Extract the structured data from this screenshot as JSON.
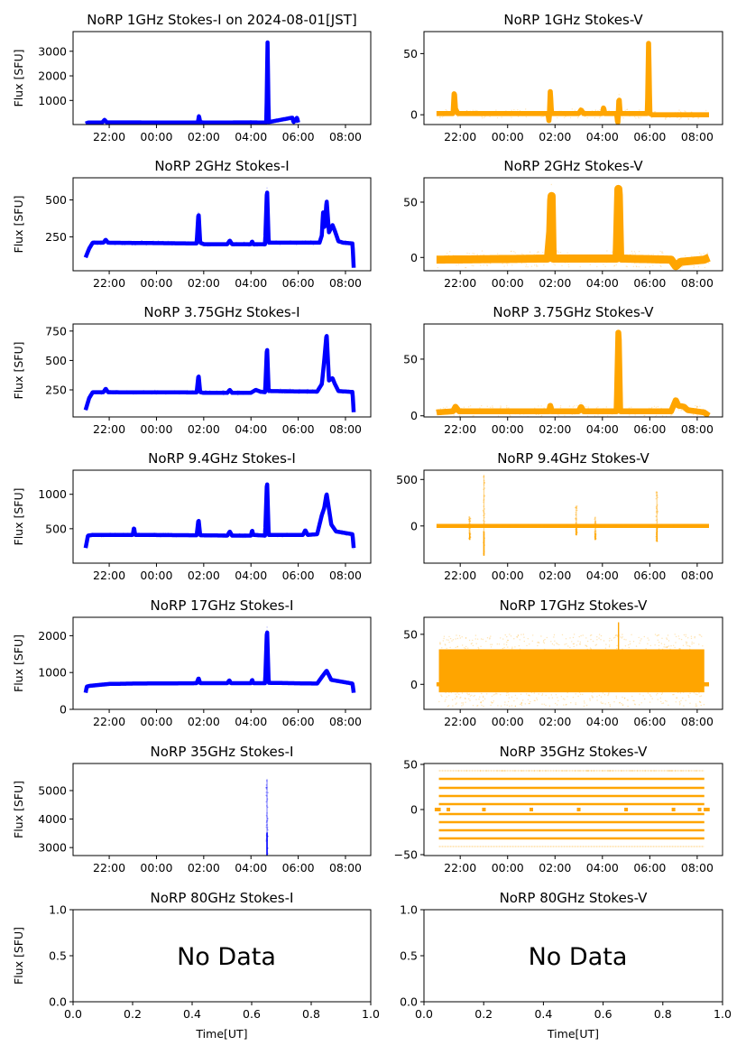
{
  "chart_data": [
    {
      "type": "scatter",
      "title": "NoRP 1GHz Stokes-I on 2024-08-01[JST]",
      "ylabel": "Flux [SFU]",
      "xlabel": "",
      "color": "#0000ff",
      "ylim": [
        20,
        3800
      ],
      "yticks": [
        1000,
        2000,
        3000
      ],
      "xticks": [
        "22:00",
        "00:00",
        "02:00",
        "04:00",
        "06:00",
        "08:00"
      ],
      "baseline": 100,
      "data_range_hours": [
        21.0,
        30.0
      ],
      "x": [
        21.0,
        21.1,
        21.7,
        21.8,
        21.9,
        25.75,
        25.8,
        25.85,
        26.0,
        28.0,
        28.65,
        28.7,
        28.75,
        29.75,
        29.8,
        29.95,
        30.0
      ],
      "values": [
        60,
        100,
        100,
        210,
        110,
        100,
        380,
        120,
        100,
        110,
        100,
        3400,
        120,
        300,
        110,
        300,
        100
      ],
      "noise": 15
    },
    {
      "type": "scatter",
      "title": "NoRP 1GHz Stokes-V",
      "ylabel": "",
      "xlabel": "",
      "color": "#ffa500",
      "ylim": [
        -8,
        68
      ],
      "yticks": [
        0,
        50
      ],
      "xticks": [
        "22:00",
        "00:00",
        "02:00",
        "04:00",
        "06:00",
        "08:00"
      ],
      "data_range_hours": [
        21.0,
        32.5
      ],
      "x": [
        21.0,
        21.7,
        21.75,
        21.8,
        21.9,
        25.7,
        25.75,
        25.8,
        25.85,
        26.0,
        27.0,
        27.1,
        27.2,
        28.0,
        28.05,
        28.1,
        28.6,
        28.65,
        28.7,
        28.75,
        29.9,
        29.95,
        30.0,
        30.1,
        32.5
      ],
      "values": [
        1,
        1,
        20,
        5,
        1,
        1,
        -6,
        20,
        1,
        1,
        1,
        4,
        1,
        1,
        6,
        1,
        1,
        -8,
        15,
        1,
        1,
        60,
        1,
        0,
        0
      ],
      "noise": 1.5
    },
    {
      "type": "scatter",
      "title": "NoRP 2GHz Stokes-I",
      "ylabel": "Flux [SFU]",
      "xlabel": "",
      "color": "#0000ff",
      "ylim": [
        20,
        650
      ],
      "yticks": [
        250,
        500
      ],
      "xticks": [
        "22:00",
        "00:00",
        "02:00",
        "04:00",
        "06:00",
        "08:00"
      ],
      "data_range_hours": [
        21.0,
        32.35
      ],
      "x": [
        21.0,
        21.15,
        21.3,
        21.75,
        21.85,
        21.95,
        25.7,
        25.78,
        25.85,
        26.0,
        27.0,
        27.1,
        27.2,
        28.0,
        28.05,
        28.1,
        28.6,
        28.68,
        28.75,
        30.9,
        31.0,
        31.05,
        31.12,
        31.2,
        31.3,
        31.45,
        31.55,
        31.7,
        31.9,
        32.3,
        32.35
      ],
      "values": [
        110,
        170,
        210,
        210,
        230,
        210,
        205,
        420,
        210,
        200,
        200,
        225,
        200,
        200,
        220,
        200,
        200,
        590,
        210,
        210,
        260,
        420,
        300,
        500,
        280,
        330,
        290,
        220,
        210,
        205,
        40
      ],
      "noise": 6
    },
    {
      "type": "scatter",
      "title": "NoRP 2GHz Stokes-V",
      "ylabel": "",
      "xlabel": "",
      "color": "#ffa500",
      "ylim": [
        -12,
        72
      ],
      "yticks": [
        0,
        50
      ],
      "xticks": [
        "22:00",
        "00:00",
        "02:00",
        "04:00",
        "06:00",
        "08:00"
      ],
      "data_range_hours": [
        21.0,
        32.5
      ],
      "x": [
        21.0,
        25.7,
        25.8,
        25.85,
        25.9,
        28.6,
        28.68,
        28.75,
        28.8,
        30.9,
        31.1,
        31.3,
        32.3,
        32.5
      ],
      "values": [
        -2,
        -1,
        24,
        62,
        -1,
        -1,
        68,
        0,
        -1,
        -2,
        -8,
        -4,
        -2,
        0
      ],
      "noise": 3
    },
    {
      "type": "scatter",
      "title": "NoRP 3.75GHz Stokes-I",
      "ylabel": "Flux [SFU]",
      "xlabel": "",
      "color": "#0000ff",
      "ylim": [
        20,
        810
      ],
      "yticks": [
        250,
        500,
        750
      ],
      "xticks": [
        "22:00",
        "00:00",
        "02:00",
        "04:00",
        "06:00",
        "08:00"
      ],
      "data_range_hours": [
        21.0,
        32.35
      ],
      "x": [
        21.0,
        21.15,
        21.3,
        21.75,
        21.85,
        21.95,
        25.7,
        25.78,
        25.85,
        26.0,
        27.0,
        27.1,
        27.2,
        28.0,
        28.2,
        28.4,
        28.6,
        28.68,
        28.75,
        30.8,
        31.0,
        31.1,
        31.2,
        31.3,
        31.45,
        31.55,
        31.7,
        32.3,
        32.35
      ],
      "values": [
        80,
        180,
        230,
        230,
        260,
        230,
        228,
        380,
        230,
        225,
        225,
        250,
        225,
        225,
        250,
        235,
        230,
        630,
        240,
        235,
        300,
        500,
        730,
        330,
        350,
        300,
        240,
        232,
        60
      ],
      "noise": 8
    },
    {
      "type": "scatter",
      "title": "NoRP 3.75GHz Stokes-V",
      "ylabel": "",
      "xlabel": "",
      "color": "#ffa500",
      "ylim": [
        -1,
        81
      ],
      "yticks": [
        0,
        50
      ],
      "xticks": [
        "22:00",
        "00:00",
        "02:00",
        "04:00",
        "06:00",
        "08:00"
      ],
      "data_range_hours": [
        21.0,
        32.5
      ],
      "x": [
        21.0,
        21.7,
        21.8,
        21.95,
        25.75,
        25.8,
        25.85,
        27.0,
        27.1,
        27.2,
        28.6,
        28.68,
        28.75,
        30.9,
        31.1,
        31.2,
        31.45,
        31.6,
        32.3,
        32.5
      ],
      "values": [
        3,
        4,
        8,
        4,
        4,
        9,
        4,
        4,
        8,
        4,
        4,
        80,
        4,
        4,
        14,
        9,
        8,
        5,
        3,
        0
      ],
      "noise": 2
    },
    {
      "type": "scatter",
      "title": "NoRP 9.4GHz Stokes-I",
      "ylabel": "Flux [SFU]",
      "xlabel": "",
      "color": "#0000ff",
      "ylim": [
        0,
        1350
      ],
      "yticks": [
        500,
        1000
      ],
      "xticks": [
        "22:00",
        "00:00",
        "02:00",
        "04:00",
        "06:00",
        "08:00"
      ],
      "data_range_hours": [
        21.0,
        32.35
      ],
      "x": [
        21.0,
        21.1,
        21.3,
        23.0,
        23.05,
        23.1,
        25.7,
        25.78,
        25.85,
        27.0,
        27.1,
        27.2,
        28.0,
        28.05,
        28.1,
        28.6,
        28.68,
        28.75,
        30.2,
        30.3,
        30.4,
        30.8,
        31.0,
        31.1,
        31.2,
        31.4,
        31.6,
        32.3,
        32.35
      ],
      "values": [
        220,
        400,
        410,
        410,
        520,
        410,
        405,
        640,
        405,
        400,
        460,
        400,
        400,
        480,
        410,
        400,
        1230,
        410,
        410,
        480,
        410,
        420,
        700,
        800,
        1010,
        560,
        460,
        420,
        220
      ],
      "noise": 12
    },
    {
      "type": "scatter",
      "title": "NoRP 9.4GHz Stokes-V",
      "ylabel": "",
      "xlabel": "",
      "color": "#ffa500",
      "ylim": [
        -400,
        600
      ],
      "yticks": [
        0,
        500
      ],
      "xticks": [
        "22:00",
        "00:00",
        "02:00",
        "04:00",
        "06:00",
        "08:00"
      ],
      "data_range_hours": [
        21.0,
        32.5
      ],
      "spikes": [
        {
          "x": 22.4,
          "min": -150,
          "max": 100
        },
        {
          "x": 23.0,
          "min": -320,
          "max": 550
        },
        {
          "x": 26.9,
          "min": -100,
          "max": 220
        },
        {
          "x": 27.7,
          "min": -150,
          "max": 100
        },
        {
          "x": 30.3,
          "min": -170,
          "max": 370
        }
      ],
      "x": [
        21.0,
        32.5
      ],
      "values": [
        0,
        0
      ],
      "noise": 4
    },
    {
      "type": "scatter",
      "title": "NoRP 17GHz Stokes-I",
      "ylabel": "Flux [SFU]",
      "xlabel": "",
      "color": "#0000ff",
      "ylim": [
        0,
        2500
      ],
      "yticks": [
        0,
        1000,
        2000
      ],
      "xticks": [
        "22:00",
        "00:00",
        "02:00",
        "04:00",
        "06:00",
        "08:00"
      ],
      "data_range_hours": [
        21.0,
        32.35
      ],
      "x": [
        21.0,
        21.05,
        21.2,
        22.0,
        23.0,
        25.7,
        25.78,
        25.85,
        27.0,
        27.08,
        27.15,
        28.0,
        28.05,
        28.1,
        28.6,
        28.68,
        28.75,
        30.8,
        31.0,
        31.2,
        31.4,
        32.3,
        32.35
      ],
      "values": [
        450,
        620,
        640,
        690,
        700,
        710,
        850,
        710,
        710,
        790,
        710,
        710,
        810,
        710,
        710,
        2250,
        720,
        700,
        880,
        1050,
        800,
        700,
        450
      ],
      "noise": 15
    },
    {
      "type": "scatter",
      "title": "NoRP 17GHz Stokes-V",
      "ylabel": "",
      "xlabel": "",
      "color": "#ffa500",
      "ylim": [
        -25,
        67
      ],
      "yticks": [
        0,
        50
      ],
      "xticks": [
        "22:00",
        "00:00",
        "02:00",
        "04:00",
        "06:00",
        "08:00"
      ],
      "data_range_hours": [
        21.0,
        32.5
      ],
      "band": {
        "from_hours": 21.1,
        "to_hours": 32.3,
        "min": -8,
        "max": 35
      },
      "x": [
        21.0,
        32.5
      ],
      "values": [
        0,
        0
      ],
      "noise": 0
    },
    {
      "type": "scatter",
      "title": "NoRP 35GHz Stokes-I",
      "ylabel": "Flux [SFU]",
      "xlabel": "",
      "color": "#0000ff",
      "ylim": [
        2720,
        5950
      ],
      "yticks": [
        3000,
        4000,
        5000
      ],
      "xticks": [
        "22:00",
        "00:00",
        "02:00",
        "04:00",
        "06:00",
        "08:00"
      ],
      "spikes": [
        {
          "x": 28.68,
          "min": 2720,
          "max": 5400
        }
      ],
      "x": [],
      "values": [],
      "noise": 0
    },
    {
      "type": "scatter",
      "title": "NoRP 35GHz Stokes-V",
      "ylabel": "",
      "xlabel": "",
      "color": "#ffa500",
      "ylim": [
        -51,
        51
      ],
      "yticks": [
        -50,
        0,
        50
      ],
      "xticks": [
        "22:00",
        "00:00",
        "02:00",
        "04:00",
        "06:00",
        "08:00"
      ],
      "levels": [
        -41,
        -32,
        -23,
        -14,
        -5,
        6,
        15,
        24,
        34,
        43
      ],
      "levels_range_hours": [
        21.1,
        32.3
      ],
      "zero_marks_hours": [
        21.0,
        21.1,
        21.5,
        23.0,
        25.0,
        27.0,
        29.0,
        31.0,
        32.1,
        32.35,
        32.45
      ],
      "x": [],
      "values": [],
      "noise": 0
    },
    {
      "type": "scatter",
      "title": "NoRP 80GHz Stokes-I",
      "ylabel": "Flux [SFU]",
      "xlabel": "Time[UT]",
      "annotation": "No Data",
      "ylim": [
        0.0,
        1.0
      ],
      "xlim": [
        0.0,
        1.0
      ],
      "yticks": [
        "0.0",
        "0.5",
        "1.0"
      ],
      "xticks": [
        "0.0",
        "0.2",
        "0.4",
        "0.6",
        "0.8",
        "1.0"
      ],
      "x": [],
      "values": []
    },
    {
      "type": "scatter",
      "title": "NoRP 80GHz Stokes-V",
      "ylabel": "",
      "xlabel": "Time[UT]",
      "annotation": "No Data",
      "ylim": [
        0.0,
        1.0
      ],
      "xlim": [
        0.0,
        1.0
      ],
      "yticks": [
        "0.0",
        "0.5",
        "1.0"
      ],
      "xticks": [
        "0.0",
        "0.2",
        "0.4",
        "0.6",
        "0.8",
        "1.0"
      ],
      "x": [],
      "values": []
    }
  ],
  "time_axis": {
    "xlim_hours": [
      20.47,
      33.07
    ],
    "tick_hours": [
      22,
      24,
      26,
      28,
      30,
      32
    ]
  }
}
